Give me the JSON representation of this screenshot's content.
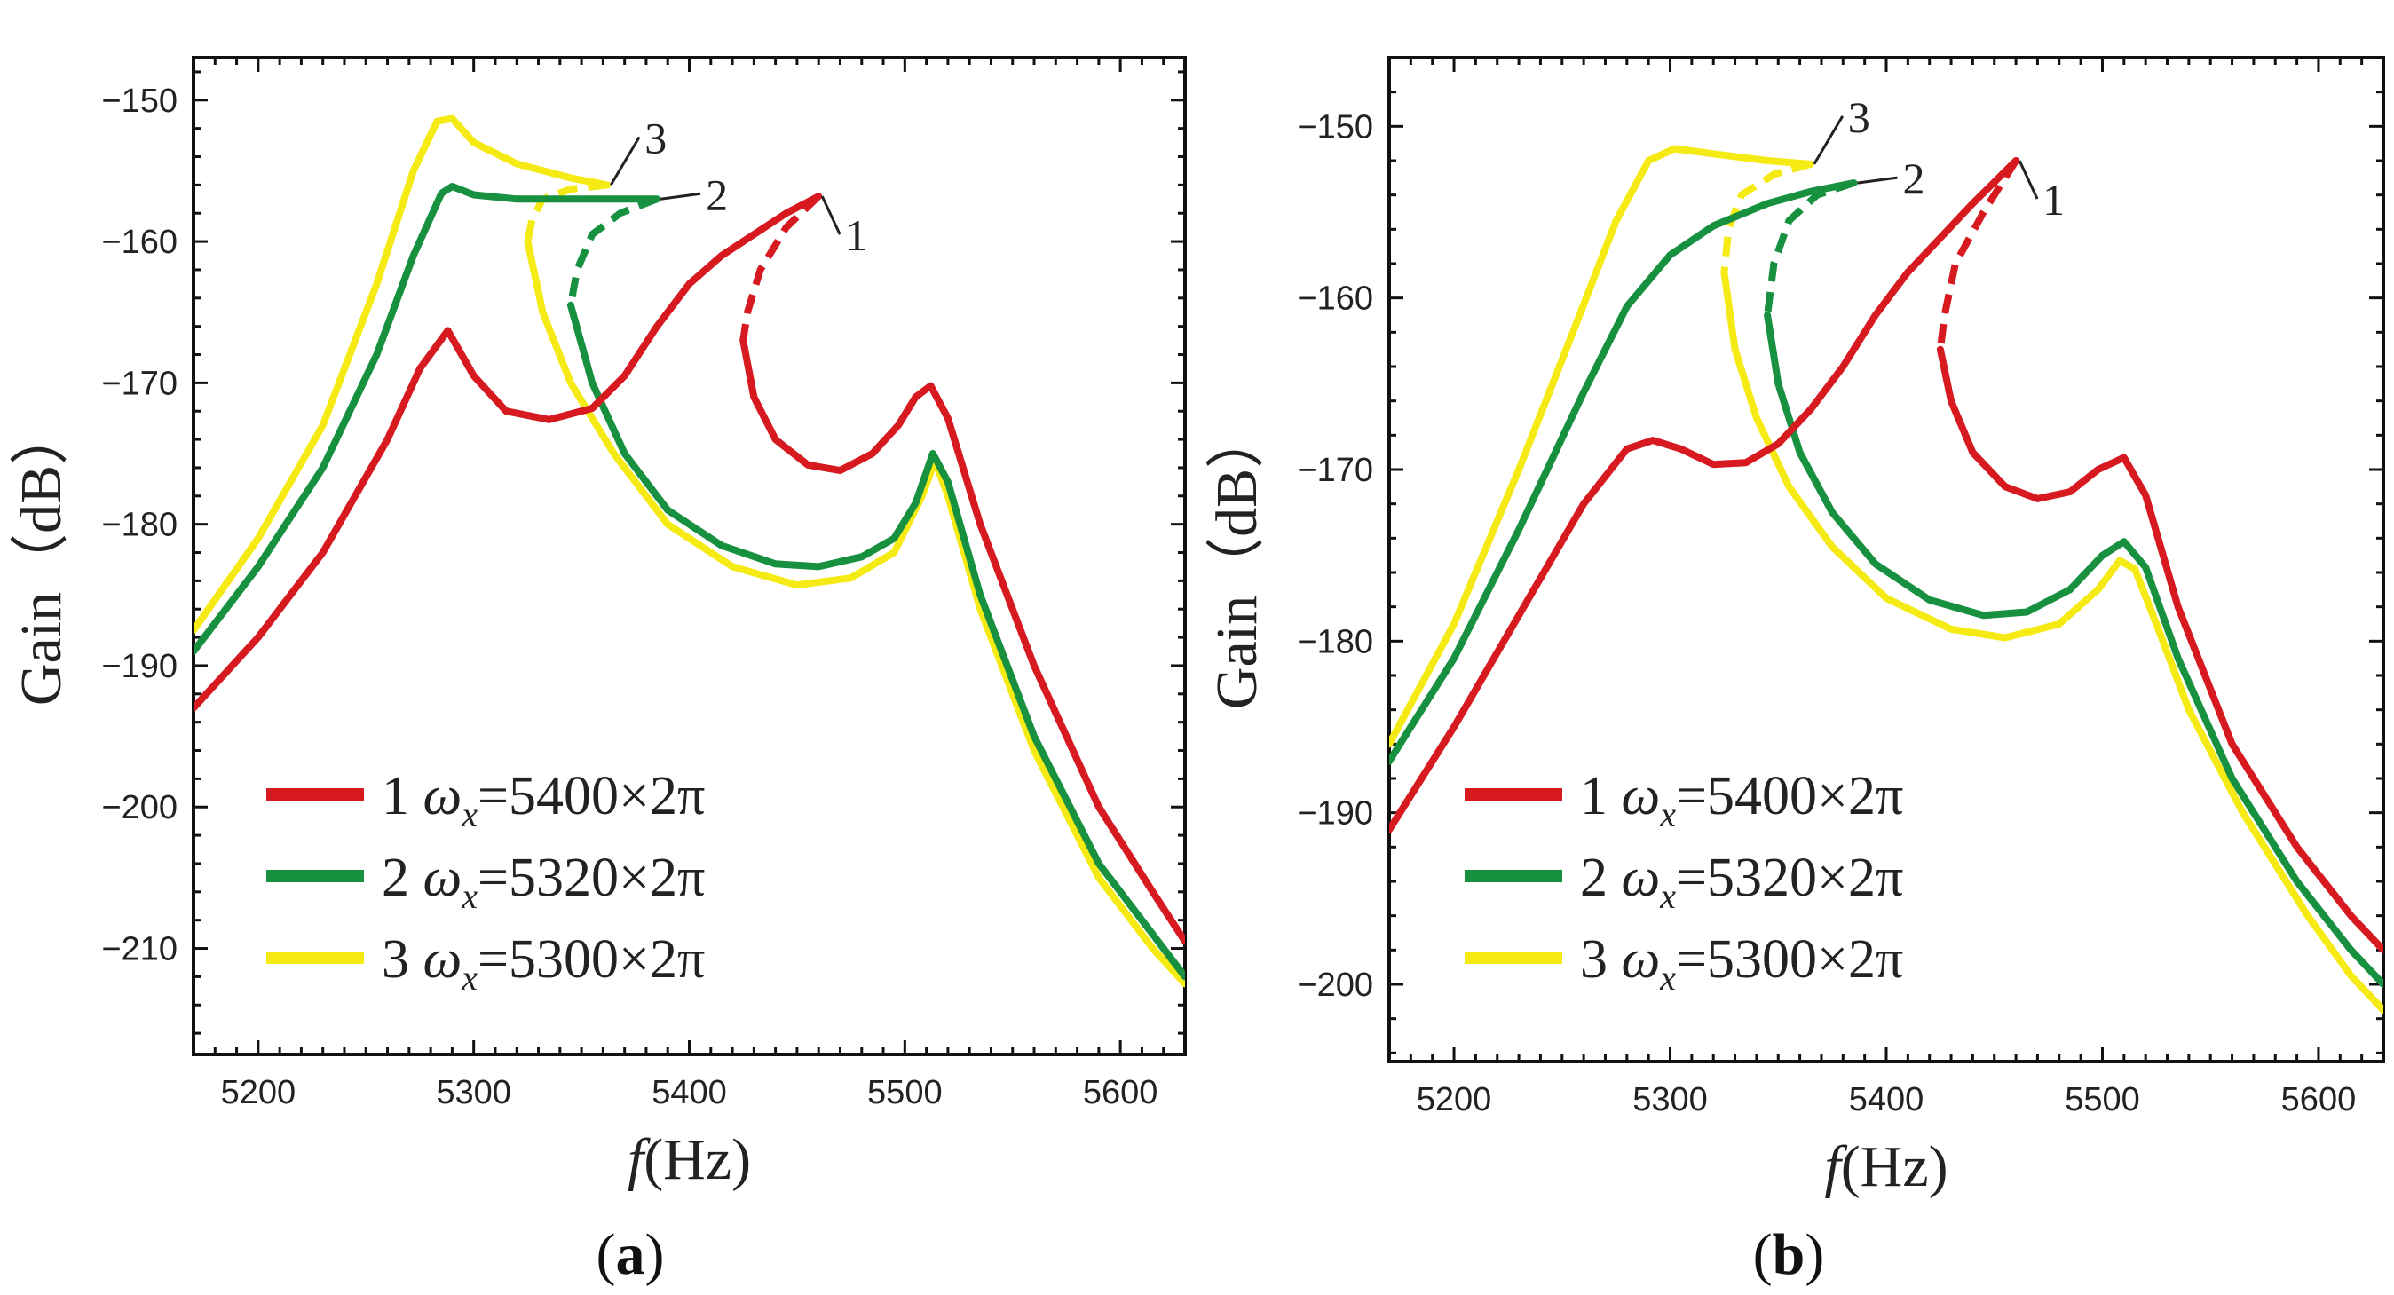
{
  "colors": {
    "series1": "#d71920",
    "series2": "#17913f",
    "series3": "#f5ea14",
    "axis": "#111111"
  },
  "chart_data": [
    {
      "type": "line",
      "panel_label": "a",
      "xlabel": "f(Hz)",
      "ylabel": "Gain (dB)",
      "xlim": [
        5170,
        5630
      ],
      "ylim": [
        -217.5,
        -147
      ],
      "xticks": [
        5200,
        5300,
        5400,
        5500,
        5600
      ],
      "yticks": [
        -150,
        -160,
        -170,
        -180,
        -190,
        -200,
        -210
      ],
      "grid": false,
      "legend_position": "bottom-left",
      "series": [
        {
          "name": "1 ωx=5400×2π",
          "label": "1",
          "color": "#d71920",
          "solid": [
            [
              5170,
              -193
            ],
            [
              5200,
              -188
            ],
            [
              5230,
              -182
            ],
            [
              5260,
              -174
            ],
            [
              5275,
              -169
            ],
            [
              5288,
              -166.3
            ],
            [
              5300,
              -169.5
            ],
            [
              5315,
              -172
            ],
            [
              5335,
              -172.6
            ],
            [
              5355,
              -171.8
            ],
            [
              5370,
              -169.5
            ],
            [
              5385,
              -166
            ],
            [
              5400,
              -163
            ],
            [
              5415,
              -161
            ],
            [
              5430,
              -159.5
            ],
            [
              5445,
              -158
            ],
            [
              5455,
              -157.2
            ],
            [
              5460,
              -156.8
            ]
          ],
          "dashed": [
            [
              5460,
              -156.8
            ],
            [
              5445,
              -159
            ],
            [
              5433,
              -162
            ],
            [
              5427,
              -165
            ],
            [
              5425,
              -167
            ]
          ],
          "lower": [
            [
              5425,
              -167
            ],
            [
              5430,
              -171
            ],
            [
              5440,
              -174
            ],
            [
              5455,
              -175.8
            ],
            [
              5470,
              -176.2
            ],
            [
              5485,
              -175
            ],
            [
              5497,
              -173
            ],
            [
              5505,
              -171
            ],
            [
              5512,
              -170.2
            ],
            [
              5520,
              -172.5
            ],
            [
              5535,
              -180
            ],
            [
              5560,
              -190
            ],
            [
              5590,
              -200
            ],
            [
              5615,
              -206
            ],
            [
              5630,
              -209.5
            ]
          ],
          "label_point": [
            5460,
            -156.8
          ]
        },
        {
          "name": "2 ωx=5320×2π",
          "label": "2",
          "color": "#17913f",
          "solid": [
            [
              5170,
              -189
            ],
            [
              5200,
              -183
            ],
            [
              5230,
              -176
            ],
            [
              5255,
              -168
            ],
            [
              5272,
              -161
            ],
            [
              5285,
              -156.6
            ],
            [
              5290,
              -156.1
            ],
            [
              5300,
              -156.7
            ],
            [
              5320,
              -157
            ],
            [
              5350,
              -157
            ],
            [
              5385,
              -157
            ]
          ],
          "dashed": [
            [
              5385,
              -157
            ],
            [
              5368,
              -158
            ],
            [
              5355,
              -159.5
            ],
            [
              5348,
              -162
            ],
            [
              5345,
              -164.5
            ]
          ],
          "lower": [
            [
              5345,
              -164.5
            ],
            [
              5355,
              -170
            ],
            [
              5370,
              -175
            ],
            [
              5390,
              -179
            ],
            [
              5415,
              -181.5
            ],
            [
              5440,
              -182.8
            ],
            [
              5460,
              -183
            ],
            [
              5480,
              -182.3
            ],
            [
              5495,
              -181
            ],
            [
              5505,
              -178.5
            ],
            [
              5513,
              -175
            ],
            [
              5520,
              -177
            ],
            [
              5535,
              -185
            ],
            [
              5560,
              -195
            ],
            [
              5590,
              -204
            ],
            [
              5615,
              -209
            ],
            [
              5630,
              -212
            ]
          ]
        },
        {
          "name": "3 ωx=5300×2π",
          "label": "3",
          "color": "#f5ea14",
          "solid": [
            [
              5170,
              -187.5
            ],
            [
              5200,
              -181
            ],
            [
              5230,
              -173
            ],
            [
              5255,
              -163
            ],
            [
              5272,
              -155
            ],
            [
              5283,
              -151.5
            ],
            [
              5290,
              -151.3
            ],
            [
              5300,
              -153
            ],
            [
              5320,
              -154.5
            ],
            [
              5345,
              -155.5
            ],
            [
              5362,
              -156
            ]
          ],
          "dashed": [
            [
              5362,
              -156
            ],
            [
              5345,
              -156.3
            ],
            [
              5332,
              -157
            ],
            [
              5327,
              -158.5
            ],
            [
              5325,
              -160
            ]
          ],
          "lower": [
            [
              5325,
              -160
            ],
            [
              5332,
              -165
            ],
            [
              5345,
              -170
            ],
            [
              5365,
              -175
            ],
            [
              5390,
              -180
            ],
            [
              5420,
              -183
            ],
            [
              5450,
              -184.3
            ],
            [
              5475,
              -183.8
            ],
            [
              5495,
              -182
            ],
            [
              5508,
              -178
            ],
            [
              5514,
              -175.5
            ],
            [
              5520,
              -178
            ],
            [
              5535,
              -186
            ],
            [
              5560,
              -196
            ],
            [
              5590,
              -205
            ],
            [
              5615,
              -210
            ],
            [
              5630,
              -212.5
            ]
          ]
        }
      ],
      "curve_labels": [
        {
          "text": "1",
          "series": 0
        },
        {
          "text": "2",
          "series": 1
        },
        {
          "text": "3",
          "series": 2
        }
      ]
    },
    {
      "type": "line",
      "panel_label": "b",
      "xlabel": "f(Hz)",
      "ylabel": "Gain (dB)",
      "xlim": [
        5170,
        5630
      ],
      "ylim": [
        -204.5,
        -146
      ],
      "xticks": [
        5200,
        5300,
        5400,
        5500,
        5600
      ],
      "yticks": [
        -150,
        -160,
        -170,
        -180,
        -190,
        -200
      ],
      "grid": false,
      "legend_position": "bottom-left",
      "series": [
        {
          "name": "1 ωx=5400×2π",
          "label": "1",
          "color": "#d71920",
          "solid": [
            [
              5170,
              -191
            ],
            [
              5200,
              -185
            ],
            [
              5230,
              -178.5
            ],
            [
              5260,
              -172
            ],
            [
              5280,
              -168.8
            ],
            [
              5292,
              -168.3
            ],
            [
              5305,
              -168.8
            ],
            [
              5320,
              -169.7
            ],
            [
              5335,
              -169.6
            ],
            [
              5350,
              -168.5
            ],
            [
              5365,
              -166.5
            ],
            [
              5380,
              -164
            ],
            [
              5395,
              -161
            ],
            [
              5410,
              -158.5
            ],
            [
              5425,
              -156.5
            ],
            [
              5440,
              -154.5
            ],
            [
              5452,
              -153
            ],
            [
              5460,
              -152
            ]
          ],
          "dashed": [
            [
              5460,
              -152
            ],
            [
              5445,
              -155
            ],
            [
              5432,
              -158
            ],
            [
              5427,
              -161
            ],
            [
              5425,
              -163
            ]
          ],
          "lower": [
            [
              5425,
              -163
            ],
            [
              5430,
              -166
            ],
            [
              5440,
              -169
            ],
            [
              5455,
              -171
            ],
            [
              5470,
              -171.7
            ],
            [
              5485,
              -171.3
            ],
            [
              5498,
              -170
            ],
            [
              5510,
              -169.3
            ],
            [
              5520,
              -171.5
            ],
            [
              5535,
              -178
            ],
            [
              5560,
              -186
            ],
            [
              5590,
              -192
            ],
            [
              5615,
              -196
            ],
            [
              5630,
              -198
            ]
          ]
        },
        {
          "name": "2 ωx=5320×2π",
          "label": "2",
          "color": "#17913f",
          "solid": [
            [
              5170,
              -187
            ],
            [
              5200,
              -181
            ],
            [
              5230,
              -173.5
            ],
            [
              5260,
              -165.5
            ],
            [
              5280,
              -160.5
            ],
            [
              5300,
              -157.5
            ],
            [
              5320,
              -155.8
            ],
            [
              5345,
              -154.5
            ],
            [
              5365,
              -153.8
            ],
            [
              5385,
              -153.3
            ]
          ],
          "dashed": [
            [
              5385,
              -153.3
            ],
            [
              5368,
              -154
            ],
            [
              5355,
              -155.5
            ],
            [
              5348,
              -158
            ],
            [
              5345,
              -161
            ]
          ],
          "lower": [
            [
              5345,
              -161
            ],
            [
              5350,
              -165
            ],
            [
              5360,
              -169
            ],
            [
              5375,
              -172.5
            ],
            [
              5395,
              -175.5
            ],
            [
              5420,
              -177.6
            ],
            [
              5445,
              -178.5
            ],
            [
              5465,
              -178.3
            ],
            [
              5485,
              -177
            ],
            [
              5500,
              -175
            ],
            [
              5510,
              -174.2
            ],
            [
              5520,
              -175.7
            ],
            [
              5535,
              -181
            ],
            [
              5560,
              -188
            ],
            [
              5590,
              -194
            ],
            [
              5615,
              -198
            ],
            [
              5630,
              -200
            ]
          ]
        },
        {
          "name": "3 ωx=5300×2π",
          "label": "3",
          "color": "#f5ea14",
          "solid": [
            [
              5170,
              -186
            ],
            [
              5200,
              -179
            ],
            [
              5230,
              -170
            ],
            [
              5255,
              -162
            ],
            [
              5275,
              -155.5
            ],
            [
              5290,
              -152
            ],
            [
              5302,
              -151.3
            ],
            [
              5320,
              -151.6
            ],
            [
              5345,
              -152
            ],
            [
              5365,
              -152.2
            ]
          ],
          "dashed": [
            [
              5365,
              -152.2
            ],
            [
              5348,
              -152.8
            ],
            [
              5333,
              -154
            ],
            [
              5327,
              -156
            ],
            [
              5325,
              -158.5
            ]
          ],
          "lower": [
            [
              5325,
              -158.5
            ],
            [
              5330,
              -163
            ],
            [
              5340,
              -167
            ],
            [
              5355,
              -171
            ],
            [
              5375,
              -174.5
            ],
            [
              5400,
              -177.5
            ],
            [
              5430,
              -179.3
            ],
            [
              5455,
              -179.8
            ],
            [
              5480,
              -179
            ],
            [
              5498,
              -177
            ],
            [
              5508,
              -175.3
            ],
            [
              5515,
              -175.8
            ],
            [
              5525,
              -179
            ],
            [
              5540,
              -184
            ],
            [
              5565,
              -190
            ],
            [
              5595,
              -196
            ],
            [
              5615,
              -199.5
            ],
            [
              5630,
              -201.5
            ]
          ]
        }
      ],
      "curve_labels": [
        {
          "text": "1",
          "series": 0
        },
        {
          "text": "2",
          "series": 1
        },
        {
          "text": "3",
          "series": 2
        }
      ]
    }
  ],
  "legend": [
    {
      "num": "1",
      "omega": "ω",
      "sub": "x",
      "expr": "=5400×2π"
    },
    {
      "num": "2",
      "omega": "ω",
      "sub": "x",
      "expr": "=5320×2π"
    },
    {
      "num": "3",
      "omega": "ω",
      "sub": "x",
      "expr": "=5300×2π"
    }
  ],
  "labels": {
    "xlabel_italic": "f",
    "xlabel_unit": "(Hz)",
    "ylabel": "Gain（dB）",
    "panel_a": "a",
    "panel_b": "b"
  }
}
